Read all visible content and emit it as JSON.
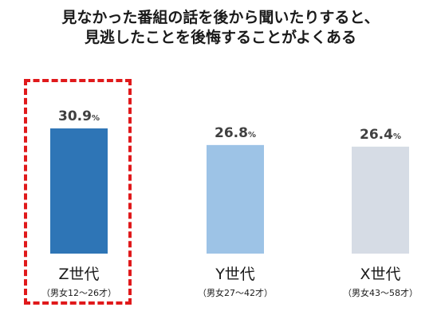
{
  "title_lines": [
    "見なかった番組の話を後から聞いたりすると、",
    "見逃したことを後悔することがよくある"
  ],
  "chart_data": {
    "type": "bar",
    "unit": "%",
    "categories": [
      "Z世代",
      "Y世代",
      "X世代"
    ],
    "subcategories": [
      "（男女12～26才）",
      "（男女27～42才）",
      "（男女43～58才）"
    ],
    "values": [
      30.9,
      26.8,
      26.4
    ],
    "value_labels": [
      "30.9",
      "26.8",
      "26.4"
    ],
    "colors": [
      "#2e75b6",
      "#9dc3e6",
      "#d6dce5"
    ],
    "ylim": [
      0,
      35
    ],
    "highlighted_category": "Z世代",
    "highlight_color": "#e0191b",
    "grid": false,
    "axes_visible": false
  }
}
